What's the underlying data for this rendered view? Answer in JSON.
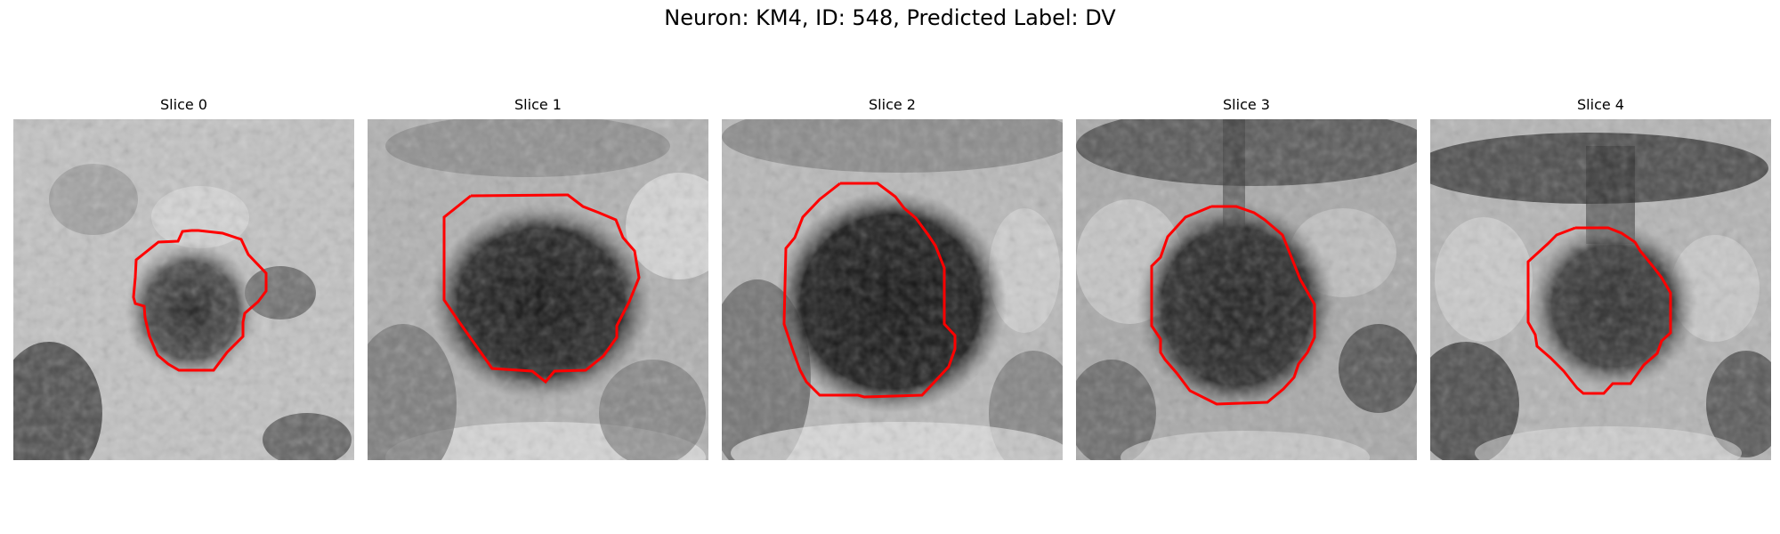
{
  "figure": {
    "title": "Neuron: KM4, ID: 548, Predicted Label: DV"
  },
  "panels": [
    {
      "title": "Slice 0"
    },
    {
      "title": "Slice 1"
    },
    {
      "title": "Slice 2"
    },
    {
      "title": "Slice 3"
    },
    {
      "title": "Slice 4"
    }
  ],
  "contour_color": "#ff0000"
}
